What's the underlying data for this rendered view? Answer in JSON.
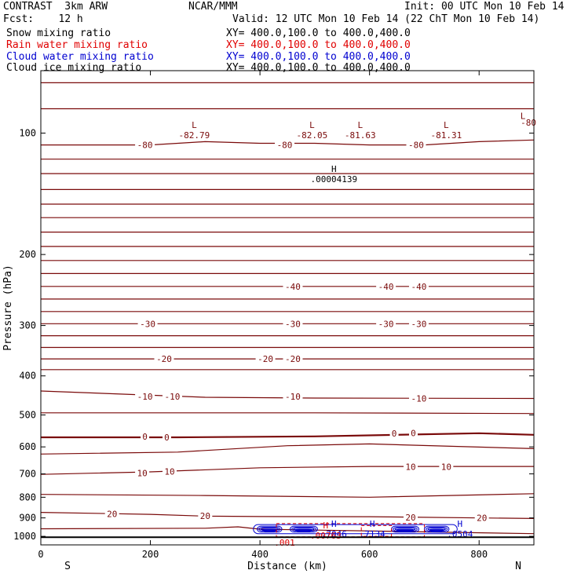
{
  "header": {
    "project": "CONTRAST  3km ARW",
    "center": "NCAR/MMM",
    "init": "Init: 00 UTC Mon 10 Feb 14",
    "fcst": "Fcst:    12 h",
    "valid": "Valid: 12 UTC Mon 10 Feb 14 (22 ChT Mon 10 Feb 14)"
  },
  "fields": [
    {
      "name": "Snow mixing ratio",
      "xy": "XY= 400.0,100.0 to 400.0,400.0",
      "color": "#000000"
    },
    {
      "name": "Rain water mixing ratio",
      "xy": "XY= 400.0,100.0 to 400.0,400.0",
      "color": "#e00000"
    },
    {
      "name": "Cloud water mixing ratio",
      "xy": "XY= 400.0,100.0 to 400.0,400.0",
      "color": "#0000d0"
    },
    {
      "name": "Cloud ice mixing ratio",
      "xy": "XY= 400.0,100.0 to 400.0,400.0",
      "color": "#000000"
    }
  ],
  "colors": {
    "temperature": "#7a0a0a",
    "rain": "#e00000",
    "cloud_water": "#0000d0",
    "frame": "#000000"
  },
  "chart_data": {
    "type": "line",
    "xlabel": "Distance (km)",
    "ylabel": "Pressure (hPa)",
    "xlim": [
      0,
      900
    ],
    "ylim": [
      1050,
      70
    ],
    "y_scale": "log",
    "x_ticks": [
      "0",
      "200",
      "400",
      "600",
      "800"
    ],
    "x_tick_values": [
      0,
      200,
      400,
      600,
      800
    ],
    "y_ticks": [
      "100",
      "200",
      "300",
      "400",
      "500",
      "600",
      "700",
      "800",
      "900",
      "1000"
    ],
    "y_tick_values": [
      100,
      200,
      300,
      400,
      500,
      600,
      700,
      800,
      900,
      1000
    ],
    "endpoints": {
      "left": "S",
      "right": "N"
    },
    "surface_pressure": 1005,
    "isotherms": [
      {
        "level": -80,
        "labels": [
          {
            "x": 190,
            "p": 107
          },
          {
            "x": 445,
            "p": 107
          },
          {
            "x": 685,
            "p": 107
          },
          {
            "x": 890,
            "p": 94
          }
        ]
      },
      {
        "level": -40,
        "labels": [
          {
            "x": 460,
            "p": 240
          },
          {
            "x": 630,
            "p": 240
          },
          {
            "x": 690,
            "p": 240
          }
        ]
      },
      {
        "level": -30,
        "labels": [
          {
            "x": 195,
            "p": 297
          },
          {
            "x": 460,
            "p": 297
          },
          {
            "x": 630,
            "p": 297
          },
          {
            "x": 690,
            "p": 297
          }
        ]
      },
      {
        "level": -20,
        "labels": [
          {
            "x": 225,
            "p": 363
          },
          {
            "x": 410,
            "p": 363
          },
          {
            "x": 460,
            "p": 363
          }
        ]
      },
      {
        "level": -10,
        "labels": [
          {
            "x": 190,
            "p": 450
          },
          {
            "x": 240,
            "p": 450
          },
          {
            "x": 460,
            "p": 450
          },
          {
            "x": 690,
            "p": 455
          }
        ]
      },
      {
        "level": 0,
        "labels": [
          {
            "x": 190,
            "p": 566
          },
          {
            "x": 230,
            "p": 568
          },
          {
            "x": 645,
            "p": 555
          },
          {
            "x": 680,
            "p": 554
          }
        ]
      },
      {
        "level": 10,
        "labels": [
          {
            "x": 185,
            "p": 697
          },
          {
            "x": 235,
            "p": 690
          },
          {
            "x": 675,
            "p": 672
          },
          {
            "x": 740,
            "p": 672
          }
        ]
      },
      {
        "level": 20,
        "labels": [
          {
            "x": 130,
            "p": 879
          },
          {
            "x": 300,
            "p": 890
          },
          {
            "x": 675,
            "p": 898
          },
          {
            "x": 805,
            "p": 900
          }
        ]
      }
    ],
    "contour_lines": [
      {
        "key": "lv75",
        "level": null,
        "x": [
          0,
          900
        ],
        "p": [
          75,
          75
        ]
      },
      {
        "key": "lvA",
        "level": null,
        "x": [
          0,
          900
        ],
        "p": [
          87,
          87
        ]
      },
      {
        "key": "lv80",
        "level": -80,
        "x": [
          0,
          200,
          300,
          400,
          500,
          600,
          700,
          800,
          900
        ],
        "p": [
          107,
          107,
          105,
          106,
          106,
          107,
          107,
          105,
          104
        ]
      },
      {
        "key": "lv115",
        "level": null,
        "x": [
          0,
          900
        ],
        "p": [
          116,
          116
        ]
      },
      {
        "key": "lv126",
        "level": null,
        "x": [
          0,
          900
        ],
        "p": [
          126,
          126
        ]
      },
      {
        "key": "lv138",
        "level": null,
        "x": [
          0,
          900
        ],
        "p": [
          138,
          138
        ]
      },
      {
        "key": "lv150",
        "level": null,
        "x": [
          0,
          900
        ],
        "p": [
          150,
          150
        ]
      },
      {
        "key": "lv162",
        "level": null,
        "x": [
          0,
          900
        ],
        "p": [
          162,
          162
        ]
      },
      {
        "key": "lv175",
        "level": null,
        "x": [
          0,
          900
        ],
        "p": [
          176,
          176
        ]
      },
      {
        "key": "lv190",
        "level": null,
        "x": [
          0,
          900
        ],
        "p": [
          191,
          191
        ]
      },
      {
        "key": "lv206",
        "level": null,
        "x": [
          0,
          900
        ],
        "p": [
          207,
          207
        ]
      },
      {
        "key": "lv222",
        "level": null,
        "x": [
          0,
          900
        ],
        "p": [
          223,
          223
        ]
      },
      {
        "key": "lv40",
        "level": -40,
        "x": [
          0,
          900
        ],
        "p": [
          240,
          240
        ]
      },
      {
        "key": "lv258",
        "level": null,
        "x": [
          0,
          900
        ],
        "p": [
          258,
          258
        ]
      },
      {
        "key": "lv277",
        "level": null,
        "x": [
          0,
          900
        ],
        "p": [
          277,
          277
        ]
      },
      {
        "key": "lv30",
        "level": -30,
        "x": [
          0,
          900
        ],
        "p": [
          297,
          297
        ]
      },
      {
        "key": "lv318",
        "level": null,
        "x": [
          0,
          900
        ],
        "p": [
          318,
          318
        ]
      },
      {
        "key": "lv340",
        "level": null,
        "x": [
          0,
          900
        ],
        "p": [
          340,
          340
        ]
      },
      {
        "key": "lv20",
        "level": -20,
        "x": [
          0,
          900
        ],
        "p": [
          363,
          363
        ]
      },
      {
        "key": "lv385",
        "level": null,
        "x": [
          0,
          900
        ],
        "p": [
          386,
          386
        ]
      },
      {
        "key": "lv10",
        "level": -10,
        "x": [
          0,
          300,
          500,
          900
        ],
        "p": [
          436,
          452,
          454,
          455
        ]
      },
      {
        "key": "lv0",
        "level": 0,
        "x": [
          0,
          250,
          500,
          800,
          900
        ],
        "p": [
          568,
          568,
          565,
          555,
          560
        ]
      },
      {
        "key": "lvA0",
        "level": null,
        "x": [
          0,
          300,
          500,
          900
        ],
        "p": [
          494,
          494,
          494,
          496
        ]
      },
      {
        "key": "lvB",
        "level": null,
        "x": [
          0,
          250,
          450,
          600,
          900
        ],
        "p": [
          625,
          618,
          596,
          590,
          606
        ]
      },
      {
        "key": "lv10p",
        "level": 10,
        "x": [
          0,
          200,
          400,
          600,
          900
        ],
        "p": [
          702,
          692,
          676,
          671,
          671
        ]
      },
      {
        "key": "lvC",
        "level": null,
        "x": [
          0,
          300,
          600,
          900
        ],
        "p": [
          787,
          792,
          800,
          784
        ]
      },
      {
        "key": "lv20p",
        "level": 20,
        "x": [
          0,
          200,
          300,
          400,
          600,
          900
        ],
        "p": [
          872,
          882,
          891,
          893,
          894,
          903
        ]
      },
      {
        "key": "lvD",
        "level": null,
        "x": [
          0,
          300,
          360,
          400,
          900
        ],
        "p": [
          958,
          955,
          947,
          960,
          985
        ]
      }
    ],
    "extrema": [
      {
        "type": "L",
        "value": "-82.79",
        "x": 280,
        "p": 98
      },
      {
        "type": "L",
        "value": "-82.05",
        "x": 495,
        "p": 98
      },
      {
        "type": "L",
        "value": "-81.63",
        "x": 583,
        "p": 98
      },
      {
        "type": "L",
        "value": "-81.31",
        "x": 740,
        "p": 98
      },
      {
        "type": "L",
        "value": "",
        "x": 880,
        "p": 93
      },
      {
        "type": "H",
        "value": ".00004139",
        "x": 535,
        "p": 126
      },
      {
        "type": "H",
        "value": ".7046",
        "x": 535,
        "p": 955
      },
      {
        "type": "H",
        "value": ".00763",
        "x": 520,
        "p": 965
      },
      {
        "type": "H",
        "value": ".7134",
        "x": 605,
        "p": 955
      },
      {
        "type": "H",
        "value": ".0504",
        "x": 765,
        "p": 955
      },
      {
        "type": "",
        "value": ".001",
        "x": 445,
        "p": 1003
      }
    ],
    "cloud_water_region": {
      "x": [
        388,
        760
      ],
      "p": [
        935,
        985
      ]
    },
    "rain_region": {
      "x": [
        430,
        700
      ],
      "p": [
        930,
        1003
      ]
    }
  }
}
